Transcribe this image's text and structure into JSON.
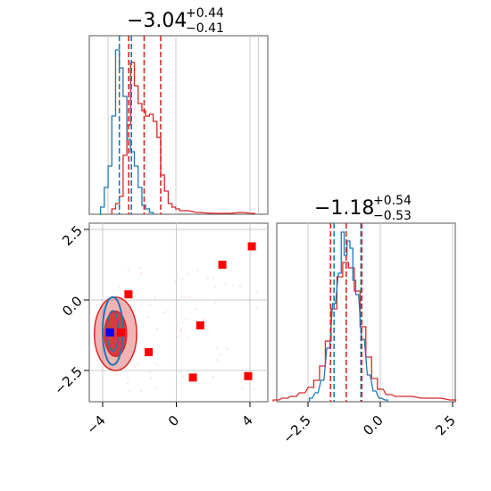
{
  "colors": {
    "red": "#d62728",
    "blue": "#1f77b4",
    "marker_red": "#ff0000",
    "marker_blue": "#0000ff",
    "grid": "#cccccc",
    "axis": "#555555"
  },
  "titles": [
    {
      "main": "−3.04",
      "sup": "+0.44",
      "sub": "−0.41"
    },
    {
      "main": "−1.18",
      "sup": "+0.54",
      "sub": "−0.53"
    }
  ],
  "chart_data": [
    {
      "type": "histogram",
      "panel": "param-1-marginal",
      "xlim": [
        -4.5,
        0.25
      ],
      "grid": true,
      "quantile_lines": {
        "red": [
          -3.45,
          -3.04,
          -2.6
        ],
        "blue": [
          -3.7,
          -3.38
        ]
      },
      "series": [
        {
          "color": "red",
          "x": [
            -3.85,
            -3.75,
            -3.65,
            -3.55,
            -3.45,
            -3.35,
            -3.25,
            -3.15,
            -3.05,
            -2.95,
            -2.85,
            -2.75,
            -2.65,
            -2.55,
            -2.45,
            -2.35,
            -2.25,
            -2.15,
            -2.05,
            -1.9,
            -1.6,
            -1.2,
            -0.8,
            -0.45,
            -0.15
          ],
          "values": [
            0.03,
            0.06,
            0.1,
            0.33,
            0.5,
            0.85,
            0.72,
            0.62,
            0.58,
            0.55,
            0.56,
            0.52,
            0.43,
            0.22,
            0.13,
            0.06,
            0.04,
            0.03,
            0.02,
            0.02,
            0.01,
            0.005,
            0.005,
            0.01,
            0.005
          ]
        },
        {
          "color": "blue",
          "x": [
            -4.15,
            -4.05,
            -3.95,
            -3.85,
            -3.75,
            -3.65,
            -3.55,
            -3.45,
            -3.35,
            -3.25,
            -3.15,
            -3.05,
            -2.95,
            -2.85
          ],
          "values": [
            0.04,
            0.15,
            0.27,
            0.55,
            0.92,
            0.82,
            0.66,
            0.42,
            0.35,
            0.27,
            0.15,
            0.05,
            0.03,
            0.01
          ]
        }
      ]
    },
    {
      "type": "scatter",
      "panel": "joint",
      "xlim": [
        -4.5,
        0.25
      ],
      "ylim": [
        -3.3,
        2.7
      ],
      "x_ticks": [
        -4,
        0,
        4
      ],
      "y_ticks": [
        2.5,
        0.0,
        -2.5
      ],
      "grid": true,
      "contours": [
        {
          "level": "outer",
          "color": "red",
          "center": [
            -3.3,
            -1.2
          ],
          "rx": 1.15,
          "ry": 1.3
        },
        {
          "level": "inner",
          "color": "red",
          "center": [
            -3.3,
            -1.2
          ],
          "rx": 0.6,
          "ry": 0.8
        },
        {
          "level": "outer",
          "color": "blue",
          "center": [
            -3.45,
            -1.1
          ],
          "rx": 0.55,
          "ry": 1.2
        }
      ],
      "markers_red": [
        {
          "x": 4.1,
          "y": 1.9
        },
        {
          "x": 2.5,
          "y": 1.25
        },
        {
          "x": -2.6,
          "y": 0.2
        },
        {
          "x": 1.3,
          "y": -0.9
        },
        {
          "x": -3.0,
          "y": -1.15
        },
        {
          "x": -1.5,
          "y": -1.85
        },
        {
          "x": 0.9,
          "y": -2.75
        },
        {
          "x": 3.9,
          "y": -2.7
        }
      ],
      "markers_blue": [
        {
          "x": -3.6,
          "y": -1.15
        }
      ]
    },
    {
      "type": "histogram",
      "panel": "param-2-marginal",
      "xlim": [
        -4.0,
        2.7
      ],
      "x_ticks": [
        -2.5,
        0.0,
        2.5
      ],
      "grid": true,
      "quantile_lines": {
        "red": [
          -1.72,
          -1.18,
          -0.64
        ],
        "blue": [
          -1.6,
          -0.67
        ]
      },
      "series": [
        {
          "color": "red",
          "x": [
            -3.6,
            -3.3,
            -3.0,
            -2.7,
            -2.4,
            -2.2,
            -2.0,
            -1.8,
            -1.6,
            -1.4,
            -1.2,
            -1.0,
            -0.8,
            -0.6,
            -0.4,
            -0.2,
            0.0,
            0.3,
            0.6,
            1.0,
            1.5,
            2.0,
            2.5
          ],
          "values": [
            0.01,
            0.02,
            0.03,
            0.05,
            0.08,
            0.12,
            0.2,
            0.34,
            0.52,
            0.7,
            0.78,
            0.75,
            0.62,
            0.42,
            0.25,
            0.13,
            0.07,
            0.04,
            0.03,
            0.03,
            0.02,
            0.02,
            0.01
          ]
        },
        {
          "color": "blue",
          "x": [
            -2.4,
            -2.2,
            -2.0,
            -1.8,
            -1.6,
            -1.4,
            -1.3,
            -1.2,
            -1.1,
            -1.0,
            -0.9,
            -0.8,
            -0.6,
            -0.4,
            -0.2,
            0.0,
            0.2
          ],
          "values": [
            0.02,
            0.05,
            0.12,
            0.3,
            0.55,
            0.72,
            0.95,
            0.82,
            0.9,
            0.86,
            0.68,
            0.6,
            0.35,
            0.15,
            0.06,
            0.02,
            0.01
          ]
        }
      ]
    }
  ]
}
